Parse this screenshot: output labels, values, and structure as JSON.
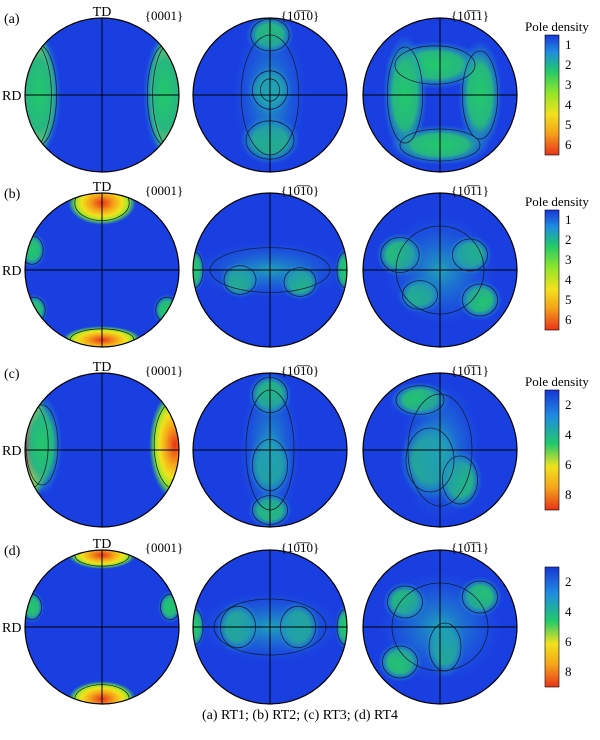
{
  "caption": "(a) RT1; (b) RT2; (c) RT3; (d) RT4",
  "rows": [
    {
      "panel_label": "(a)",
      "axis_top_label": "TD",
      "axis_left_label": "RD",
      "plane_labels": [
        "{0001}",
        "{10̅1̅0}",
        "{10̅1̅1}"
      ],
      "legend": {
        "title": "Pole density",
        "ticks": [
          "1",
          "2",
          "3",
          "4",
          "5",
          "6"
        ]
      }
    },
    {
      "panel_label": "(b)",
      "axis_top_label": "TD",
      "axis_left_label": "RD",
      "plane_labels": [
        "{0001}",
        "{10̅1̅0}",
        "{10̅1̅1}"
      ],
      "legend": {
        "title": "Pole density",
        "ticks": [
          "1",
          "2",
          "3",
          "4",
          "5",
          "6"
        ]
      }
    },
    {
      "panel_label": "(c)",
      "axis_top_label": "TD",
      "axis_left_label": "RD",
      "plane_labels": [
        "{0001}",
        "{10̅1̅0}",
        "{10̅1̅1}"
      ],
      "legend": {
        "title": "Pole density",
        "ticks": [
          "2",
          "4",
          "6",
          "8"
        ]
      }
    },
    {
      "panel_label": "(d)",
      "axis_top_label": "TD",
      "axis_left_label": "RD",
      "plane_labels": [
        "{0001}",
        "{10̅1̅0}",
        "{10̅1̅1}"
      ],
      "legend": {
        "title": "",
        "ticks": [
          "2",
          "4",
          "6",
          "8"
        ]
      }
    }
  ],
  "colorscale": [
    "#1736d6",
    "#1f8ce0",
    "#22c96a",
    "#8fe52a",
    "#f2e21c",
    "#f5a21a",
    "#e8321a"
  ],
  "background_color": "#1a3fe0"
}
